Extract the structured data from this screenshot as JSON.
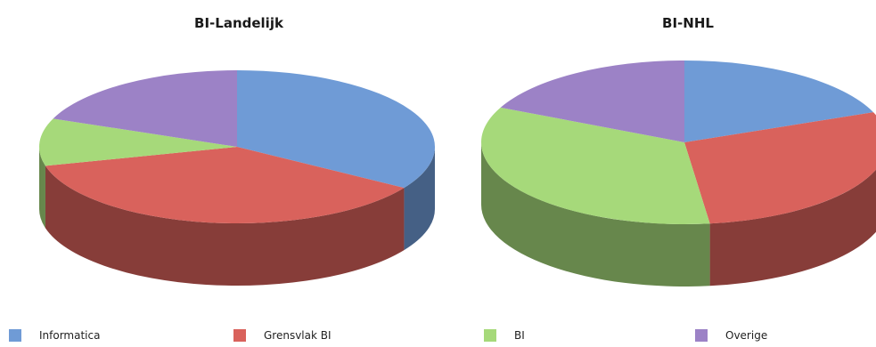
{
  "chart_data": [
    {
      "type": "pie",
      "title": "BI-Landelijk",
      "categories": [
        "Informatica",
        "Grensvlak BI",
        "BI",
        "Overige"
      ],
      "values": [
        34,
        37,
        10,
        19
      ],
      "colors": [
        "#6f9bd6",
        "#d9625c",
        "#a6d97a",
        "#9c82c6"
      ]
    },
    {
      "type": "pie",
      "title": "BI-NHL",
      "categories": [
        "Informatica",
        "Grensvlak BI",
        "BI",
        "Overige"
      ],
      "values": [
        19,
        29,
        34,
        18
      ],
      "colors": [
        "#6f9bd6",
        "#d9625c",
        "#a6d97a",
        "#9c82c6"
      ]
    }
  ],
  "legend": {
    "items": [
      {
        "label": "Informatica",
        "color": "#6f9bd6"
      },
      {
        "label": "Grensvlak BI",
        "color": "#d9625c"
      },
      {
        "label": "BI",
        "color": "#a6d97a"
      },
      {
        "label": "Overige",
        "color": "#9c82c6"
      }
    ]
  }
}
